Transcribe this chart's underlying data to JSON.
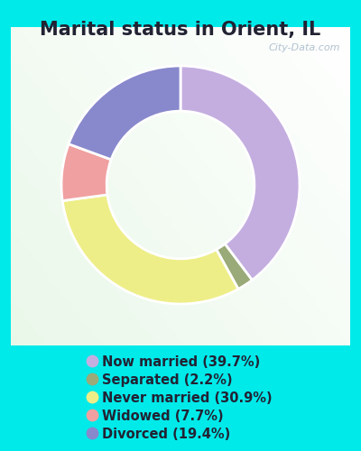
{
  "title": "Marital status in Orient, IL",
  "title_fontsize": 15,
  "background_outer": "#00eaea",
  "watermark": "City-Data.com",
  "slices": [
    {
      "label": "Now married (39.7%)",
      "value": 39.7,
      "color": "#c4aee0"
    },
    {
      "label": "Separated (2.2%)",
      "value": 2.2,
      "color": "#9aaa78"
    },
    {
      "label": "Never married (30.9%)",
      "value": 30.9,
      "color": "#eeee88"
    },
    {
      "label": "Widowed (7.7%)",
      "value": 7.7,
      "color": "#f0a0a0"
    },
    {
      "label": "Divorced (19.4%)",
      "value": 19.4,
      "color": "#8888cc"
    }
  ],
  "legend_fontsize": 10.5,
  "donut_width": 0.38,
  "start_angle": 90
}
